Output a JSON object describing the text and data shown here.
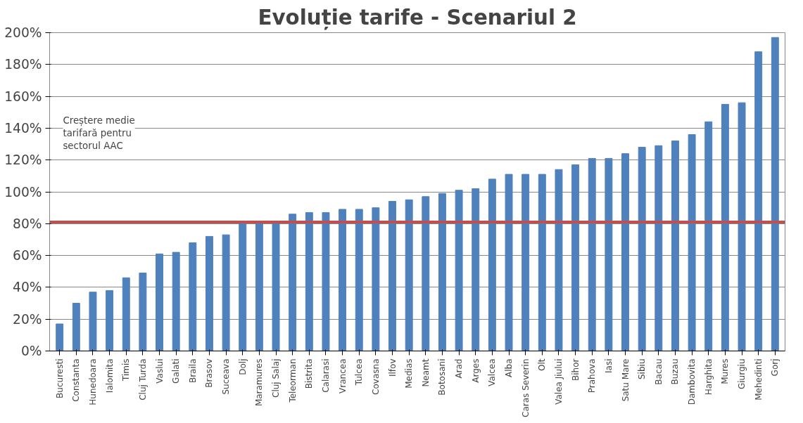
{
  "chart_data": {
    "type": "bar",
    "title": "Evoluție tarife - Scenariul 2",
    "categories": [
      "Bucuresti",
      "Constanta",
      "Hunedoara",
      "Ialomita",
      "Timis",
      "Cluj Turda",
      "Vaslui",
      "Galati",
      "Braila",
      "Brasov",
      "Suceava",
      "Dolj",
      "Maramures",
      "Cluj Salaj",
      "Teleorman",
      "Bistrita",
      "Calarasi",
      "Vrancea",
      "Tulcea",
      "Covasna",
      "Ilfov",
      "Medias",
      "Neamt",
      "Botosani",
      "Arad",
      "Arges",
      "Valcea",
      "Alba",
      "Caras Severin",
      "Olt",
      "Valea Jiului",
      "Bihor",
      "Prahova",
      "Iasi",
      "Satu Mare",
      "Sibiu",
      "Bacau",
      "Buzau",
      "Dambovita",
      "Harghita",
      "Mures",
      "Giurgiu",
      "Mehedinti",
      "Gorj"
    ],
    "values": [
      17,
      30,
      37,
      38,
      46,
      49,
      61,
      62,
      68,
      72,
      73,
      80,
      80,
      80,
      86,
      87,
      87,
      89,
      89,
      90,
      94,
      95,
      97,
      99,
      101,
      102,
      108,
      111,
      111,
      111,
      114,
      117,
      121,
      121,
      124,
      128,
      129,
      132,
      136,
      144,
      155,
      156,
      188,
      197
    ],
    "color": "#4f81bd",
    "ylim": [
      0,
      200
    ],
    "yticks": [
      {
        "value": 0,
        "label": "0%"
      },
      {
        "value": 20,
        "label": "20%"
      },
      {
        "value": 40,
        "label": "40%"
      },
      {
        "value": 60,
        "label": "60%"
      },
      {
        "value": 80,
        "label": "80%"
      },
      {
        "value": 100,
        "label": "100%"
      },
      {
        "value": 120,
        "label": "120%"
      },
      {
        "value": 140,
        "label": "140%"
      },
      {
        "value": 160,
        "label": "160%"
      },
      {
        "value": 180,
        "label": "180%"
      },
      {
        "value": 200,
        "label": "200%"
      }
    ],
    "grid": "y",
    "ref_lines": [
      {
        "axis": "y",
        "value": 81,
        "color": "#c0504d"
      }
    ],
    "annotations": [
      "Creștere medie\ntarifară pentru\nsectorul AAC"
    ]
  }
}
